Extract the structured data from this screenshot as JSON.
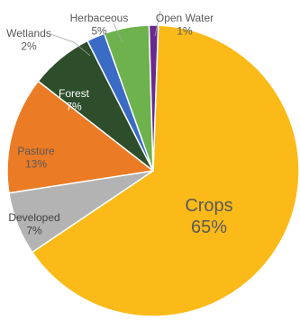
{
  "chart_data": {
    "type": "pie",
    "title": "",
    "slices": [
      {
        "label": "Crops",
        "value": 65,
        "pct_text": "65%",
        "color": "#FBBA17",
        "label_color": "#595959"
      },
      {
        "label": "Developed",
        "value": 7,
        "pct_text": "7%",
        "color": "#B3B3B3",
        "label_color": "#404040"
      },
      {
        "label": "Pasture",
        "value": 13,
        "pct_text": "13%",
        "color": "#EB7B24",
        "label_color": "#595959"
      },
      {
        "label": "Forest",
        "value": 7,
        "pct_text": "7%",
        "color": "#2D4D2B",
        "label_color": "#ffffff"
      },
      {
        "label": "Wetlands",
        "value": 2,
        "pct_text": "2%",
        "color": "#3A6BC5",
        "label_color": "#595959"
      },
      {
        "label": "Herbaceous",
        "value": 5,
        "pct_text": "5%",
        "color": "#6DB24C",
        "label_color": "#595959"
      },
      {
        "label": "Open Water",
        "value": 1,
        "pct_text": "1%",
        "color": "#6A2891",
        "label_color": "#595959"
      }
    ],
    "legend": "none"
  }
}
